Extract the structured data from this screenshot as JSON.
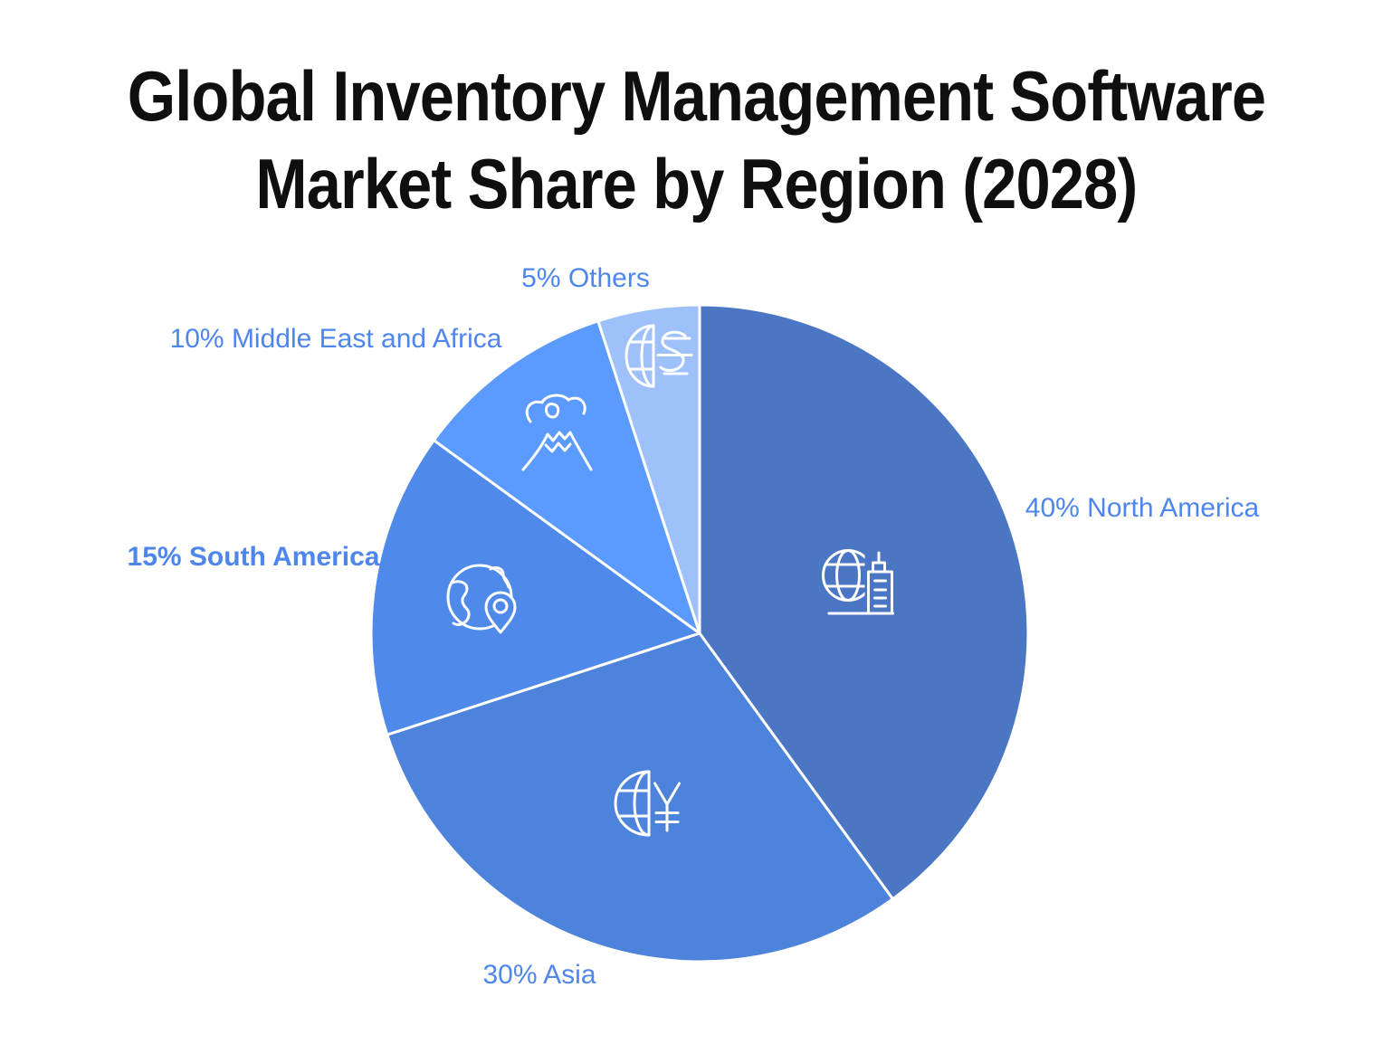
{
  "title": "Global Inventory Management Software Market Share by Region (2028)",
  "title_lines": [
    "Global Inventory Management Software",
    "Market Share by Region (2028)"
  ],
  "colors": {
    "background": "#ffffff",
    "title_text": "#0f0f0f",
    "label_text": "#4e86ec",
    "slice_border": "#ffffff",
    "icon_stroke": "#ffffff"
  },
  "chart_data": {
    "type": "pie",
    "title": "Global Inventory Management Software Market Share by Region (2028)",
    "start_angle_deg": 0,
    "direction": "clockwise",
    "legend_position": "none",
    "labels_outside": true,
    "slices": [
      {
        "label": "North America",
        "value": 40,
        "display_label": "40% North America",
        "color": "#4b76c4",
        "icon": "globe-building-icon",
        "label_bold": false
      },
      {
        "label": "Asia",
        "value": 30,
        "display_label": "30% Asia",
        "color": "#4e83dc",
        "icon": "globe-yen-icon",
        "label_bold": false
      },
      {
        "label": "South America",
        "value": 15,
        "display_label": "15% South America",
        "color": "#4f8aeb",
        "icon": "globe-location-pin-icon",
        "label_bold": true
      },
      {
        "label": "Middle East and Africa",
        "value": 10,
        "display_label": "10% Middle East and Africa",
        "color": "#5b9afe",
        "icon": "volcano-icon",
        "label_bold": false
      },
      {
        "label": "Others",
        "value": 5,
        "display_label": "5% Others",
        "color": "#9fc1fb",
        "icon": "globe-dollar-icon",
        "label_bold": false
      }
    ]
  }
}
